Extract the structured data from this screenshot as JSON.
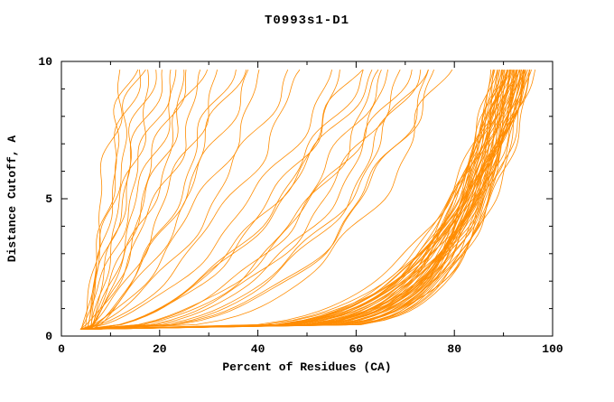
{
  "chart_data": {
    "type": "line",
    "title": "T0993s1-D1",
    "xlabel": "Percent of Residues (CA)",
    "ylabel": "Distance Cutoff, A",
    "xlim": [
      0,
      100
    ],
    "ylim": [
      0,
      10
    ],
    "xticks_major": [
      0,
      20,
      40,
      60,
      80,
      100
    ],
    "xticks_minor_step": 10,
    "yticks_major": [
      0,
      5,
      10
    ],
    "yticks_minor_step": 1,
    "grid": false,
    "legend": "none",
    "background": "#FFFFFF",
    "axis_color": "#000000",
    "series_color": "#FF8C00",
    "curve_model": "x(y) = x0 + (xmax - x0) * ((y-0.25)/9.45)^p, each curve [x0, xmax, p, phase], small sinusoidal jitter for organic shape",
    "curves": [
      [
        5,
        95,
        0.12,
        0.5
      ],
      [
        4,
        93,
        0.15,
        1.2
      ],
      [
        6,
        91,
        0.13,
        2.1
      ],
      [
        5,
        94,
        0.18,
        3.3
      ],
      [
        4,
        90,
        0.11,
        4.0
      ],
      [
        6,
        92,
        0.16,
        5.1
      ],
      [
        5,
        89,
        0.14,
        0.9
      ],
      [
        4,
        96,
        0.2,
        1.7
      ],
      [
        6,
        88,
        0.12,
        2.8
      ],
      [
        5,
        93,
        0.17,
        3.9
      ],
      [
        4,
        91,
        0.13,
        5.5
      ],
      [
        6,
        94,
        0.19,
        0.3
      ],
      [
        5,
        90,
        0.15,
        1.1
      ],
      [
        4,
        92,
        0.12,
        2.4
      ],
      [
        6,
        95,
        0.21,
        3.6
      ],
      [
        5,
        88,
        0.14,
        4.7
      ],
      [
        4,
        94,
        0.16,
        5.8
      ],
      [
        6,
        90,
        0.11,
        0.7
      ],
      [
        5,
        92,
        0.18,
        1.9
      ],
      [
        4,
        89,
        0.13,
        3.0
      ],
      [
        6,
        93,
        0.15,
        4.2
      ],
      [
        5,
        95,
        0.22,
        5.3
      ],
      [
        4,
        91,
        0.12,
        0.2
      ],
      [
        6,
        89,
        0.17,
        1.4
      ],
      [
        5,
        94,
        0.13,
        2.6
      ],
      [
        4,
        92,
        0.19,
        3.8
      ],
      [
        6,
        96,
        0.14,
        4.9
      ],
      [
        5,
        90,
        0.16,
        0.6
      ],
      [
        4,
        93,
        0.11,
        1.8
      ],
      [
        6,
        91,
        0.2,
        2.9
      ],
      [
        5,
        89,
        0.13,
        4.1
      ],
      [
        4,
        95,
        0.17,
        5.2
      ],
      [
        6,
        92,
        0.12,
        0.4
      ],
      [
        5,
        94,
        0.15,
        1.6
      ],
      [
        4,
        90,
        0.18,
        2.7
      ],
      [
        6,
        93,
        0.13,
        3.9
      ],
      [
        5,
        91,
        0.21,
        5.0
      ],
      [
        4,
        88,
        0.14,
        0.8
      ],
      [
        6,
        95,
        0.16,
        2.0
      ],
      [
        5,
        92,
        0.11,
        3.1
      ],
      [
        4,
        94,
        0.19,
        4.3
      ],
      [
        6,
        90,
        0.13,
        5.4
      ],
      [
        5,
        93,
        0.15,
        0.1
      ],
      [
        4,
        91,
        0.22,
        1.3
      ],
      [
        6,
        94,
        0.12,
        2.5
      ],
      [
        5,
        88,
        0.16,
        3.7
      ],
      [
        4,
        92,
        0.14,
        4.8
      ],
      [
        6,
        96,
        0.18,
        5.9
      ],
      [
        5,
        90,
        0.12,
        1.0
      ],
      [
        4,
        93,
        0.2,
        2.2
      ],
      [
        6,
        91,
        0.15,
        3.4
      ],
      [
        5,
        95,
        0.13,
        4.5
      ],
      [
        4,
        89,
        0.17,
        5.6
      ],
      [
        6,
        92,
        0.19,
        0.9
      ],
      [
        5,
        94,
        0.14,
        2.1
      ],
      [
        5,
        78,
        0.3,
        0.5
      ],
      [
        6,
        72,
        0.35,
        1.6
      ],
      [
        4,
        65,
        0.4,
        2.7
      ],
      [
        5,
        75,
        0.32,
        3.8
      ],
      [
        6,
        68,
        0.45,
        4.9
      ],
      [
        4,
        60,
        0.5,
        0.3
      ],
      [
        5,
        70,
        0.38,
        1.4
      ],
      [
        6,
        63,
        0.55,
        2.5
      ],
      [
        4,
        76,
        0.33,
        3.6
      ],
      [
        5,
        58,
        0.48,
        4.7
      ],
      [
        6,
        66,
        0.42,
        5.8
      ],
      [
        4,
        73,
        0.36,
        1.0
      ],
      [
        5,
        61,
        0.52,
        2.2
      ],
      [
        6,
        69,
        0.4,
        3.3
      ],
      [
        4,
        56,
        0.58,
        4.4
      ],
      [
        5,
        14,
        1.0,
        0.5
      ],
      [
        6,
        18,
        0.9,
        1.5
      ],
      [
        4,
        22,
        0.85,
        2.5
      ],
      [
        5,
        12,
        1.1,
        3.5
      ],
      [
        6,
        26,
        0.8,
        4.5
      ],
      [
        4,
        30,
        0.75,
        5.5
      ],
      [
        5,
        16,
        1.05,
        0.2
      ],
      [
        6,
        34,
        0.7,
        1.2
      ],
      [
        4,
        20,
        0.95,
        2.2
      ],
      [
        5,
        38,
        0.68,
        3.2
      ],
      [
        6,
        24,
        0.9,
        4.2
      ],
      [
        4,
        42,
        0.65,
        5.2
      ],
      [
        5,
        28,
        0.8,
        0.8
      ],
      [
        6,
        15,
        1.2,
        1.8
      ],
      [
        4,
        46,
        0.62,
        2.8
      ],
      [
        5,
        32,
        0.72,
        3.8
      ],
      [
        6,
        19,
        1.0,
        4.8
      ],
      [
        4,
        50,
        0.6,
        5.8
      ],
      [
        5,
        36,
        0.7,
        1.1
      ],
      [
        6,
        25,
        0.88,
        2.3
      ]
    ]
  }
}
